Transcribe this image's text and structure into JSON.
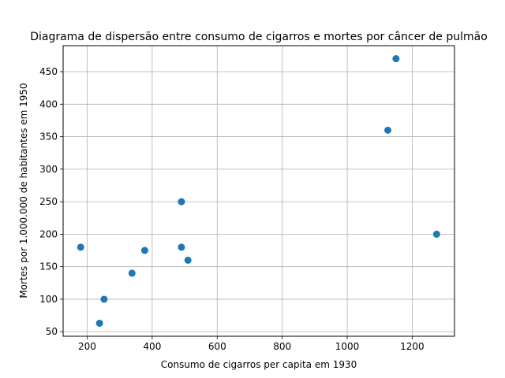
{
  "chart_data": {
    "type": "scatter",
    "title": "Diagrama de dispersão entre consumo de cigarros e mortes por câncer de pulmão",
    "xlabel": "Consumo de cigarros per capita em 1930",
    "ylabel": "Mortes por 1.000.000 de habitantes em 1950",
    "xlim": [
      126,
      1330
    ],
    "ylim": [
      43,
      490
    ],
    "xticks": [
      200,
      400,
      600,
      800,
      1000,
      1200
    ],
    "yticks": [
      50,
      100,
      150,
      200,
      250,
      300,
      350,
      400,
      450
    ],
    "grid": true,
    "marker_color": "#1f77b4",
    "points": [
      {
        "x": 180,
        "y": 180
      },
      {
        "x": 238,
        "y": 63
      },
      {
        "x": 252,
        "y": 100
      },
      {
        "x": 338,
        "y": 140
      },
      {
        "x": 377,
        "y": 175
      },
      {
        "x": 490,
        "y": 250
      },
      {
        "x": 490,
        "y": 180
      },
      {
        "x": 510,
        "y": 160
      },
      {
        "x": 1125,
        "y": 360
      },
      {
        "x": 1150,
        "y": 470
      },
      {
        "x": 1275,
        "y": 200
      }
    ]
  }
}
